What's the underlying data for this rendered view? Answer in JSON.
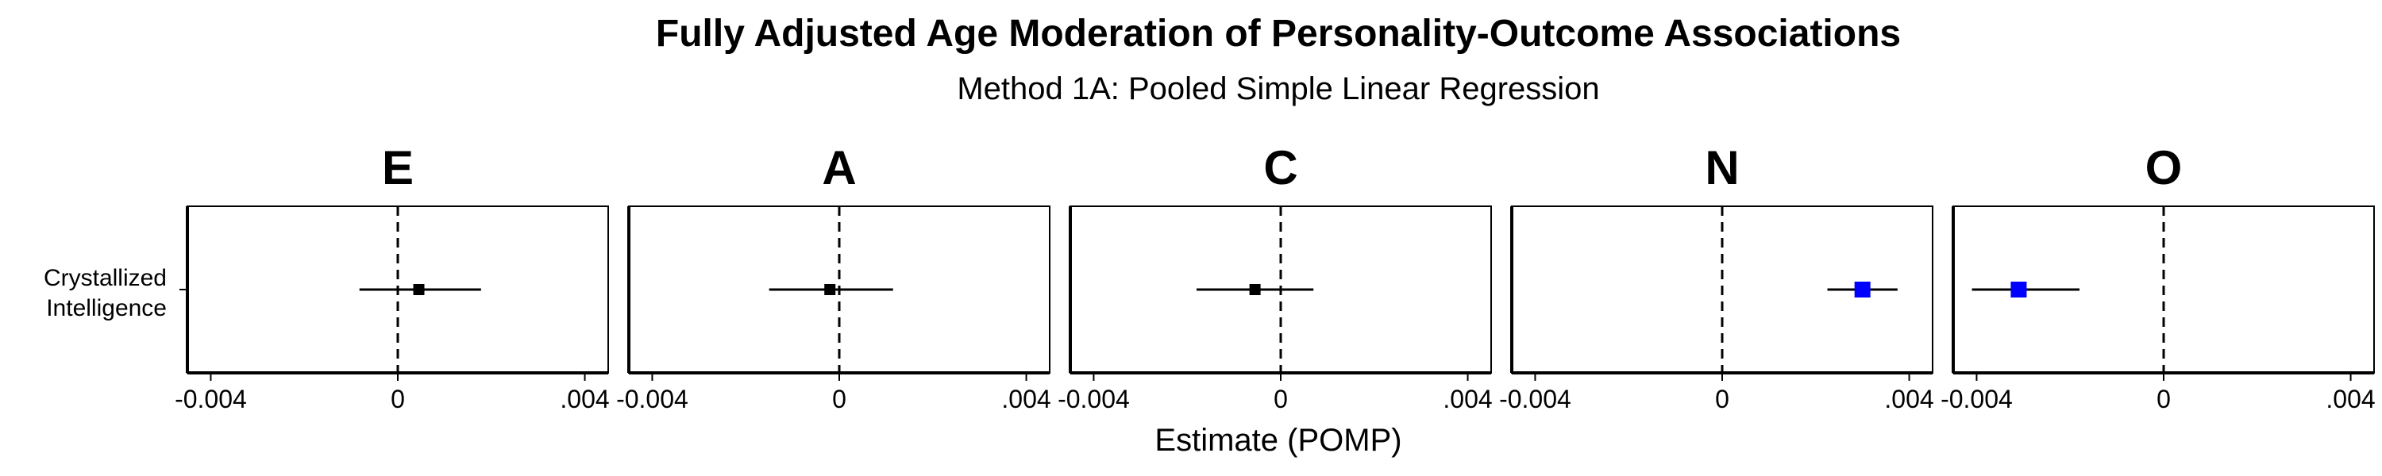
{
  "chart_data": {
    "type": "forest",
    "title": "Fully Adjusted Age Moderation of Personality-Outcome Associations",
    "subtitle": "Method 1A: Pooled Simple Linear Regression",
    "xlabel": "Estimate (POMP)",
    "ylabel": "",
    "row_label_lines": [
      "Crystallized",
      "Intelligence"
    ],
    "xlim": [
      -0.0045,
      0.0045
    ],
    "xticks": [
      -0.004,
      0,
      0.004
    ],
    "xtick_labels": [
      "-0.004",
      "0",
      ".004"
    ],
    "reference_line": 0,
    "colors": {
      "nonsignificant": "#000000",
      "significant": "#0000ff"
    },
    "panels": [
      {
        "name": "E",
        "estimate": 0.00045,
        "ci": [
          -0.00082,
          0.00178
        ],
        "significant": false
      },
      {
        "name": "A",
        "estimate": -0.0002,
        "ci": [
          -0.0015,
          0.00115
        ],
        "significant": false
      },
      {
        "name": "C",
        "estimate": -0.00055,
        "ci": [
          -0.0018,
          0.0007
        ],
        "significant": false
      },
      {
        "name": "N",
        "estimate": 0.003,
        "ci": [
          0.00225,
          0.00375
        ],
        "significant": true
      },
      {
        "name": "O",
        "estimate": -0.0031,
        "ci": [
          -0.0041,
          -0.0018
        ],
        "significant": true
      }
    ]
  }
}
